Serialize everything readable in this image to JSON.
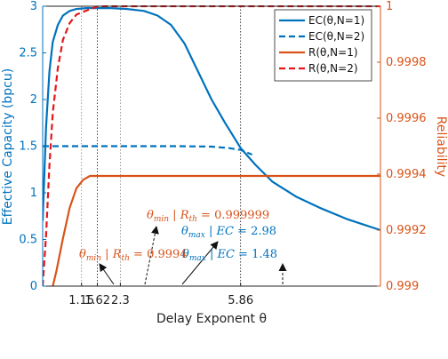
{
  "chart_data": {
    "type": "line",
    "title": "",
    "xlabel": "Delay Exponent θ",
    "ylabel_left": "Effective Capacity (bpcu)",
    "ylabel_right": "Reliability",
    "xlim": [
      0,
      10
    ],
    "ylim_left": [
      0,
      3
    ],
    "ylim_right": [
      0.999,
      1
    ],
    "xticks": [
      1.15,
      1.62,
      2.3,
      5.86
    ],
    "xtick_labels": [
      "1.15",
      "1.62",
      "2.3",
      "5.86"
    ],
    "yticks_left": [
      0,
      0.5,
      1,
      1.5,
      2,
      2.5,
      3
    ],
    "ytick_labels_left": [
      "0",
      "0.5",
      "1",
      "1.5",
      "2",
      "2.5",
      "3"
    ],
    "yticks_right": [
      0.999,
      0.9992,
      0.9994,
      0.9996,
      0.9998,
      1
    ],
    "ytick_labels_right": [
      "0.999",
      "0.9992",
      "0.9994",
      "0.9996",
      "0.9998",
      "1"
    ],
    "vlines": [
      1.15,
      1.62,
      2.3,
      5.86
    ],
    "legend_position": "top-right",
    "grid": false,
    "series": [
      {
        "name": "EC(θ,N=1)",
        "axis": "left",
        "style": "solid",
        "color": "#0072BD",
        "points": [
          [
            0.0,
            0.7
          ],
          [
            0.1,
            1.7
          ],
          [
            0.2,
            2.3
          ],
          [
            0.3,
            2.62
          ],
          [
            0.45,
            2.8
          ],
          [
            0.6,
            2.9
          ],
          [
            0.8,
            2.95
          ],
          [
            1.0,
            2.97
          ],
          [
            1.3,
            2.98
          ],
          [
            1.62,
            2.98
          ],
          [
            2.0,
            2.98
          ],
          [
            2.5,
            2.97
          ],
          [
            3.0,
            2.95
          ],
          [
            3.4,
            2.9
          ],
          [
            3.8,
            2.8
          ],
          [
            4.2,
            2.6
          ],
          [
            4.6,
            2.3
          ],
          [
            5.0,
            2.0
          ],
          [
            5.4,
            1.75
          ],
          [
            5.86,
            1.48
          ],
          [
            6.3,
            1.3
          ],
          [
            6.8,
            1.12
          ],
          [
            7.5,
            0.96
          ],
          [
            8.2,
            0.84
          ],
          [
            9.0,
            0.72
          ],
          [
            10.0,
            0.6
          ]
        ]
      },
      {
        "name": "EC(θ,N=2)",
        "axis": "left",
        "style": "dashed",
        "color": "#0072BD",
        "points": [
          [
            0.0,
            1.5
          ],
          [
            1.0,
            1.5
          ],
          [
            2.0,
            1.5
          ],
          [
            3.0,
            1.5
          ],
          [
            4.0,
            1.5
          ],
          [
            5.0,
            1.495
          ],
          [
            5.5,
            1.48
          ],
          [
            5.86,
            1.46
          ],
          [
            6.0,
            1.44
          ],
          [
            6.2,
            1.41
          ]
        ]
      },
      {
        "name": "R(θ,N=1)",
        "axis": "right",
        "style": "solid",
        "color": "#D95319",
        "points": [
          [
            0.3,
            0.999
          ],
          [
            0.4,
            0.99905
          ],
          [
            0.6,
            0.99917
          ],
          [
            0.8,
            0.99928
          ],
          [
            1.0,
            0.99935
          ],
          [
            1.2,
            0.99938
          ],
          [
            1.4,
            0.9993935
          ],
          [
            1.62,
            0.99939355
          ],
          [
            2.0,
            0.99939355
          ],
          [
            4.0,
            0.99939355
          ],
          [
            6.0,
            0.99939355
          ],
          [
            8.0,
            0.99939355
          ],
          [
            10.0,
            0.99939355
          ]
        ]
      },
      {
        "name": "R(θ,N=2)",
        "axis": "right",
        "style": "dashed",
        "color": "#E3181A",
        "points": [
          [
            0.0,
            0.999
          ],
          [
            0.1,
            0.99918
          ],
          [
            0.2,
            0.99943
          ],
          [
            0.3,
            0.99962
          ],
          [
            0.45,
            0.99978
          ],
          [
            0.6,
            0.99988
          ],
          [
            0.8,
            0.99994
          ],
          [
            1.0,
            0.99997
          ],
          [
            1.2,
            0.99998
          ],
          [
            1.62,
            0.999999
          ],
          [
            2.0,
            1.0
          ],
          [
            4.0,
            1.0
          ],
          [
            6.0,
            1.0
          ],
          [
            8.0,
            1.0
          ],
          [
            10.0,
            1.0
          ]
        ]
      }
    ],
    "annotations": [
      {
        "text_name": "θ",
        "text_sub": "min",
        "text_rest": " | R",
        "text_sub2": "th",
        "text_value": " = 0.999999",
        "color": "#D95319",
        "arrow_to": [
          1.62,
          0.0
        ]
      },
      {
        "text_name": "θ",
        "text_sub": "min",
        "text_rest": " | R",
        "text_sub2": "th",
        "text_value": " = 0.9994",
        "color": "#D95319",
        "arrow_to": [
          1.15,
          0.0
        ]
      },
      {
        "text_name": "θ",
        "text_sub": "max",
        "text_rest": " | EC",
        "text_sub2": "",
        "text_value": " = 2.98",
        "color": "#0072BD",
        "arrow_to": [
          2.3,
          0.0
        ]
      },
      {
        "text_name": "θ",
        "text_sub": "max",
        "text_rest": " | EC",
        "text_sub2": "",
        "text_value": " = 1.48",
        "color": "#0072BD",
        "arrow_to": [
          5.86,
          0.0
        ]
      }
    ]
  }
}
